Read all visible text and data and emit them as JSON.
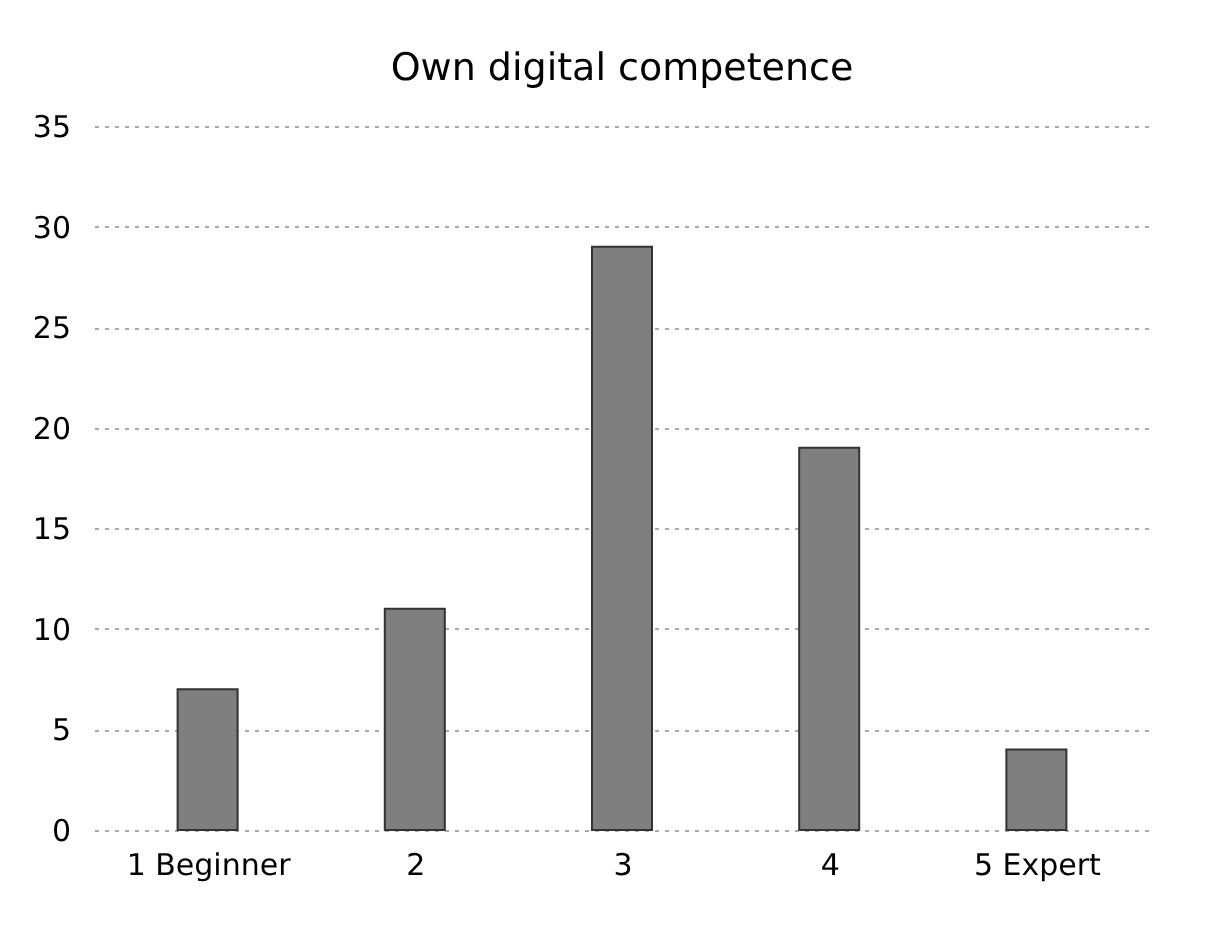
{
  "chart_data": {
    "type": "bar",
    "title": "Own digital competence",
    "categories": [
      "1 Beginner",
      "2",
      "3",
      "4",
      "5 Expert"
    ],
    "values": [
      7,
      11,
      29,
      19,
      4
    ],
    "color": "#7f7f7f",
    "ylim": [
      0,
      35
    ],
    "yticks": [
      0,
      5,
      10,
      15,
      20,
      25,
      30,
      35
    ],
    "grid": "y"
  }
}
